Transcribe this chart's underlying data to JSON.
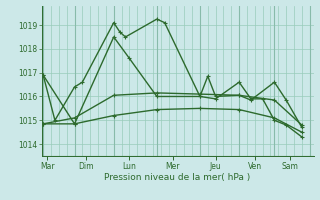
{
  "xlabel": "Pression niveau de la mer( hPa )",
  "background_color": "#cce8e8",
  "grid_color": "#99ccbb",
  "line_color": "#2d6a2d",
  "ylim": [
    1013.5,
    1019.8
  ],
  "xlim": [
    -0.2,
    34.5
  ],
  "yticks": [
    1014,
    1015,
    1016,
    1017,
    1018,
    1019
  ],
  "day_labels": [
    "Mar",
    "Dim",
    "Lun",
    "Mer",
    "Jeu",
    "Ven",
    "Sam"
  ],
  "day_positions": [
    0.5,
    5.5,
    11.0,
    16.5,
    22.0,
    27.0,
    31.5
  ],
  "day_sep_positions": [
    0,
    4,
    9,
    14.5,
    20,
    25,
    29.5,
    34
  ],
  "series": {
    "line1_x": [
      0,
      1.5,
      4,
      5,
      9,
      9.8,
      10.5,
      14.5,
      15.5,
      20,
      21,
      22,
      25,
      26.5,
      29.5,
      31,
      33
    ],
    "line1_y": [
      1016.9,
      1015.0,
      1016.4,
      1016.6,
      1019.1,
      1018.7,
      1018.5,
      1019.25,
      1019.1,
      1016.0,
      1016.85,
      1016.0,
      1016.05,
      1015.85,
      1016.6,
      1015.85,
      1014.7
    ],
    "line2_x": [
      0,
      4,
      9,
      14.5,
      20,
      25,
      29.5,
      33
    ],
    "line2_y": [
      1014.85,
      1014.85,
      1015.2,
      1015.45,
      1015.5,
      1015.45,
      1015.1,
      1014.5
    ],
    "line3_x": [
      0,
      4,
      9,
      14.5,
      20,
      25,
      29.5,
      33
    ],
    "line3_y": [
      1014.85,
      1015.1,
      1016.05,
      1016.15,
      1016.1,
      1016.05,
      1015.85,
      1014.8
    ],
    "line4_x": [
      0,
      4,
      9,
      11,
      14.5,
      20,
      22,
      25,
      26.5,
      28,
      29.5,
      31,
      33
    ],
    "line4_y": [
      1016.9,
      1014.85,
      1018.5,
      1017.6,
      1016.0,
      1016.0,
      1015.9,
      1016.6,
      1015.9,
      1015.9,
      1015.0,
      1014.8,
      1014.3
    ]
  }
}
